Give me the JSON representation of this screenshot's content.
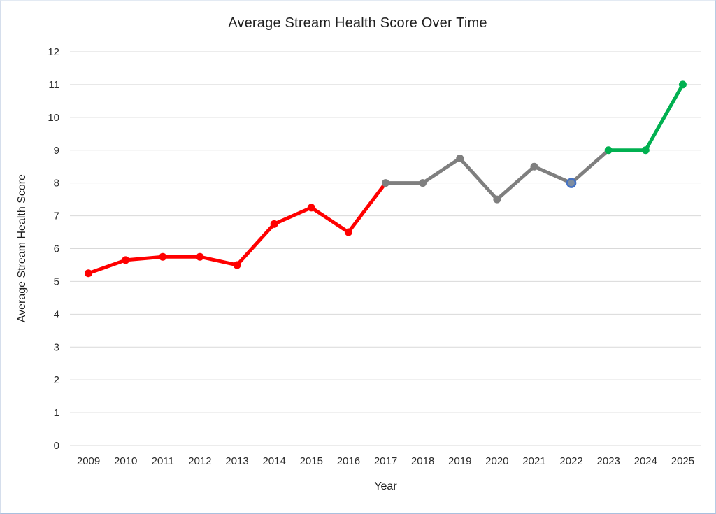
{
  "figure": {
    "background": "#FFFFFF",
    "border_color": "#A9C0DE"
  },
  "chart_data": {
    "type": "line",
    "title": "Average Stream Health Score Over Time",
    "xlabel": "Year",
    "ylabel": "Average Stream Health Score",
    "categories": [
      "2009",
      "2010",
      "2011",
      "2012",
      "2013",
      "2014",
      "2015",
      "2016",
      "2017",
      "2018",
      "2019",
      "2020",
      "2021",
      "2022",
      "2023",
      "2024",
      "2025"
    ],
    "series": [
      {
        "name": "Average Stream Health Score",
        "values": [
          5.25,
          5.65,
          5.75,
          5.75,
          5.5,
          6.75,
          7.25,
          6.5,
          8,
          8,
          8.75,
          7.5,
          8.5,
          8,
          9,
          9,
          11
        ]
      }
    ],
    "ylim": [
      0,
      12
    ],
    "ytick_step": 1,
    "grid": "horizontal",
    "legend": "none",
    "colors": {
      "red_segment": "#FF0000",
      "gray_segment": "#7F7F7F",
      "green_segment": "#00B050",
      "gridline": "#D9D9D9",
      "highlight_ring": "#4472C4",
      "highlight_fill": "#7E8DA0"
    },
    "segment_colors": [
      "#FF0000",
      "#FF0000",
      "#FF0000",
      "#FF0000",
      "#FF0000",
      "#FF0000",
      "#FF0000",
      "#FF0000",
      "#7F7F7F",
      "#7F7F7F",
      "#7F7F7F",
      "#7F7F7F",
      "#7F7F7F",
      "#7F7F7F",
      "#00B050",
      "#00B050"
    ],
    "point_colors": [
      "#FF0000",
      "#FF0000",
      "#FF0000",
      "#FF0000",
      "#FF0000",
      "#FF0000",
      "#FF0000",
      "#FF0000",
      "#7F7F7F",
      "#7F7F7F",
      "#7F7F7F",
      "#7F7F7F",
      "#7F7F7F",
      "#7E8DA0",
      "#00B050",
      "#00B050",
      "#00B050"
    ],
    "highlight": {
      "index": 13,
      "stroke": "#4472C4",
      "fill": "#7E8DA0"
    }
  }
}
